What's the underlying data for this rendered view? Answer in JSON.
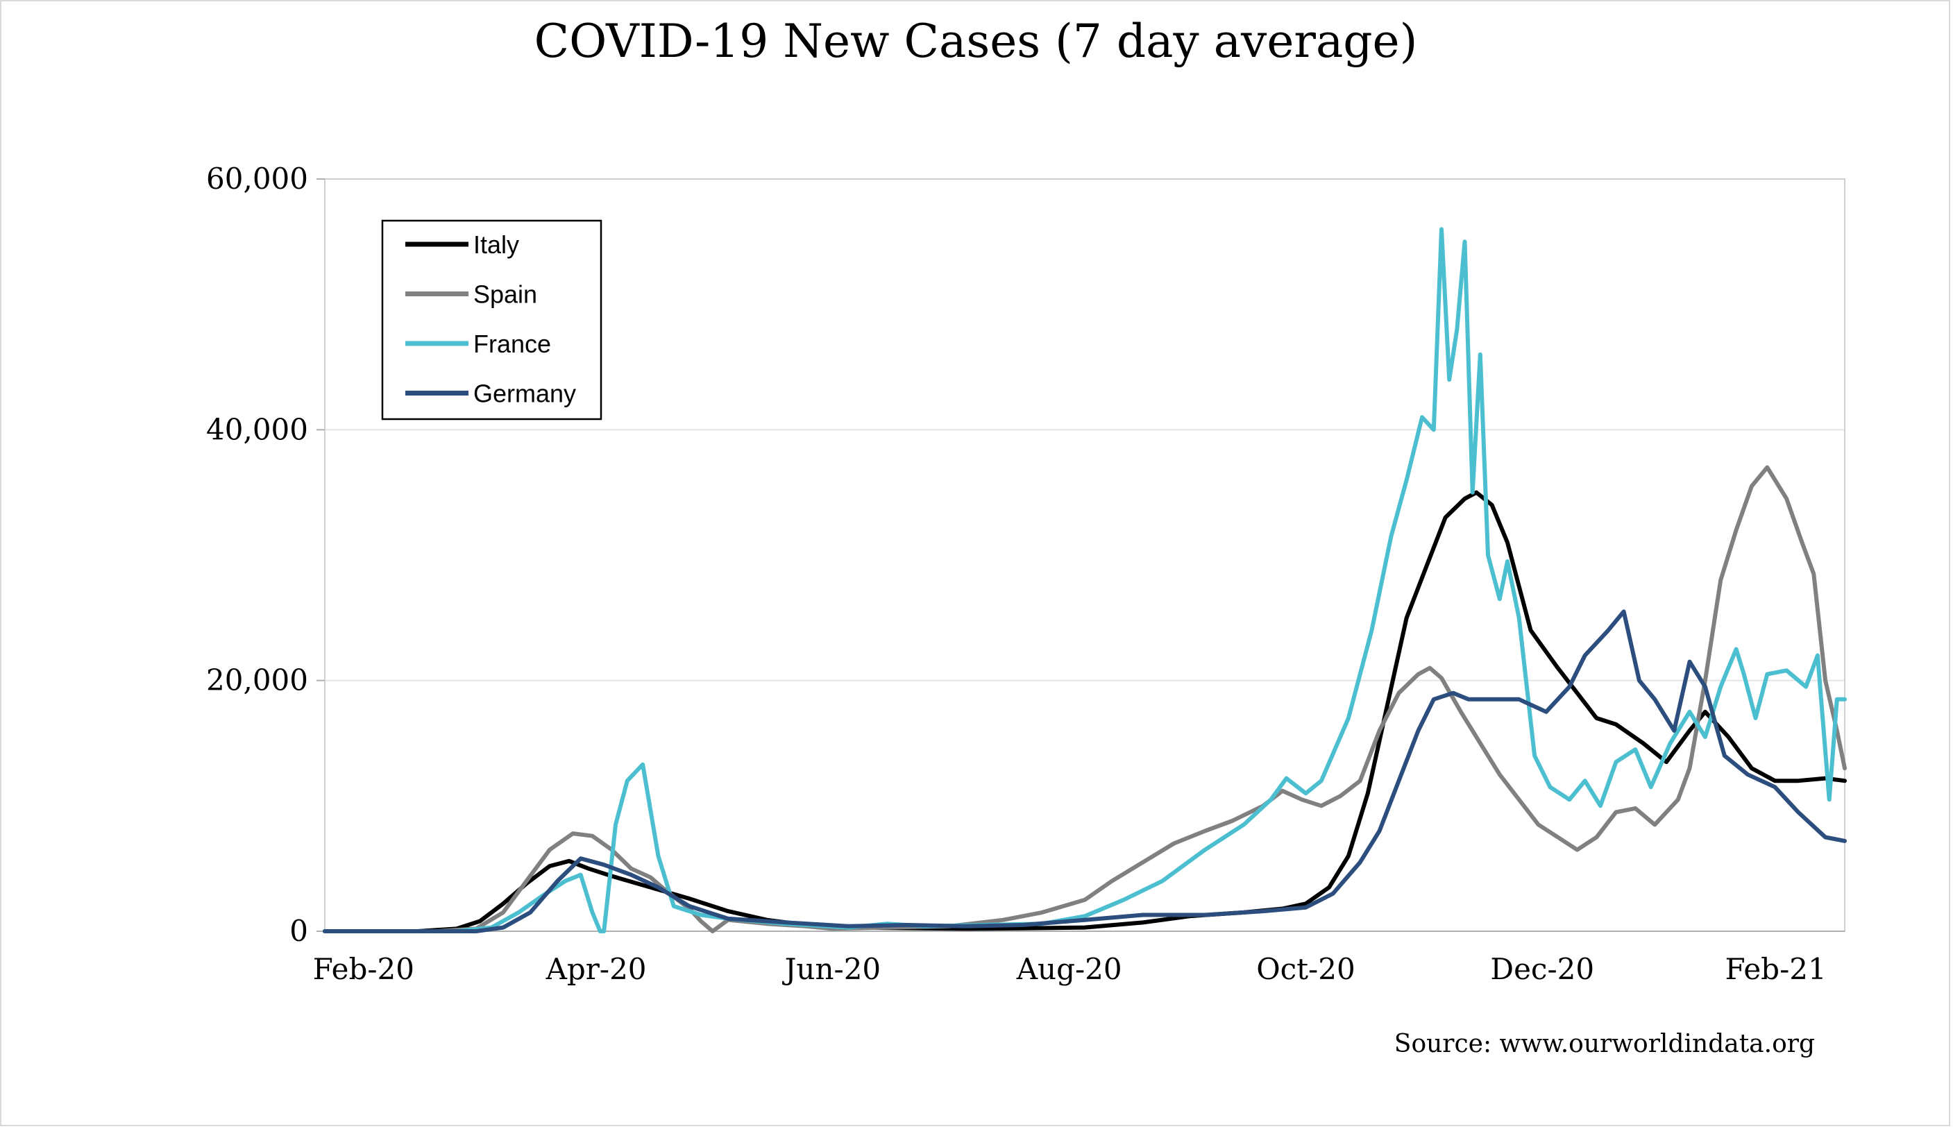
{
  "chart_data": {
    "type": "line",
    "title": "COVID-19 New Cases (7 day average)",
    "xlabel": "",
    "ylabel": "",
    "source": "Source: www.ourworldindata.org",
    "ylim": [
      0,
      60000
    ],
    "yticks": [
      0,
      20000,
      40000,
      60000
    ],
    "ytick_labels": [
      "0",
      "20,000",
      "40,000",
      "60,000"
    ],
    "xlim": [
      "2020-01-22",
      "2021-02-17"
    ],
    "xticks": [
      "2020-02-01",
      "2020-04-01",
      "2020-06-01",
      "2020-08-01",
      "2020-10-01",
      "2020-12-01",
      "2021-02-01"
    ],
    "xtick_labels": [
      "Feb-20",
      "Apr-20",
      "Jun-20",
      "Aug-20",
      "Oct-20",
      "Dec-20",
      "Feb-21"
    ],
    "grid": true,
    "legend": "top-left",
    "series": [
      {
        "name": "Italy",
        "color": "#000000",
        "points": [
          [
            "2020-01-22",
            0
          ],
          [
            "2020-02-15",
            0
          ],
          [
            "2020-02-25",
            200
          ],
          [
            "2020-03-02",
            800
          ],
          [
            "2020-03-08",
            2200
          ],
          [
            "2020-03-14",
            3800
          ],
          [
            "2020-03-20",
            5200
          ],
          [
            "2020-03-25",
            5600
          ],
          [
            "2020-03-30",
            5000
          ],
          [
            "2020-04-05",
            4400
          ],
          [
            "2020-04-15",
            3500
          ],
          [
            "2020-04-25",
            2600
          ],
          [
            "2020-05-05",
            1600
          ],
          [
            "2020-05-15",
            900
          ],
          [
            "2020-05-25",
            500
          ],
          [
            "2020-06-05",
            300
          ],
          [
            "2020-06-20",
            250
          ],
          [
            "2020-07-05",
            200
          ],
          [
            "2020-07-20",
            230
          ],
          [
            "2020-08-05",
            300
          ],
          [
            "2020-08-20",
            700
          ],
          [
            "2020-09-01",
            1200
          ],
          [
            "2020-09-15",
            1500
          ],
          [
            "2020-09-25",
            1800
          ],
          [
            "2020-10-01",
            2200
          ],
          [
            "2020-10-07",
            3500
          ],
          [
            "2020-10-12",
            6000
          ],
          [
            "2020-10-17",
            11000
          ],
          [
            "2020-10-22",
            18000
          ],
          [
            "2020-10-27",
            25000
          ],
          [
            "2020-11-01",
            29000
          ],
          [
            "2020-11-06",
            33000
          ],
          [
            "2020-11-11",
            34500
          ],
          [
            "2020-11-14",
            35000
          ],
          [
            "2020-11-18",
            34000
          ],
          [
            "2020-11-22",
            31000
          ],
          [
            "2020-11-28",
            24000
          ],
          [
            "2020-12-05",
            21000
          ],
          [
            "2020-12-10",
            19000
          ],
          [
            "2020-12-15",
            17000
          ],
          [
            "2020-12-20",
            16500
          ],
          [
            "2020-12-27",
            15000
          ],
          [
            "2021-01-02",
            13500
          ],
          [
            "2021-01-08",
            16000
          ],
          [
            "2021-01-12",
            17500
          ],
          [
            "2021-01-18",
            15500
          ],
          [
            "2021-01-24",
            13000
          ],
          [
            "2021-01-30",
            12000
          ],
          [
            "2021-02-05",
            12000
          ],
          [
            "2021-02-12",
            12200
          ],
          [
            "2021-02-17",
            12000
          ]
        ]
      },
      {
        "name": "Spain",
        "color": "#808080",
        "points": [
          [
            "2020-01-22",
            0
          ],
          [
            "2020-02-20",
            0
          ],
          [
            "2020-03-01",
            200
          ],
          [
            "2020-03-08",
            1500
          ],
          [
            "2020-03-14",
            4000
          ],
          [
            "2020-03-20",
            6500
          ],
          [
            "2020-03-26",
            7800
          ],
          [
            "2020-03-31",
            7600
          ],
          [
            "2020-04-05",
            6500
          ],
          [
            "2020-04-10",
            5000
          ],
          [
            "2020-04-15",
            4300
          ],
          [
            "2020-04-18",
            3500
          ],
          [
            "2020-04-22",
            2500
          ],
          [
            "2020-04-25",
            1800
          ],
          [
            "2020-04-28",
            800
          ],
          [
            "2020-05-01",
            0
          ],
          [
            "2020-05-05",
            900
          ],
          [
            "2020-05-15",
            600
          ],
          [
            "2020-05-25",
            400
          ],
          [
            "2020-06-01",
            200
          ],
          [
            "2020-06-15",
            300
          ],
          [
            "2020-07-01",
            400
          ],
          [
            "2020-07-15",
            900
          ],
          [
            "2020-07-25",
            1500
          ],
          [
            "2020-08-05",
            2500
          ],
          [
            "2020-08-12",
            4000
          ],
          [
            "2020-08-20",
            5500
          ],
          [
            "2020-08-28",
            7000
          ],
          [
            "2020-09-05",
            8000
          ],
          [
            "2020-09-12",
            8800
          ],
          [
            "2020-09-20",
            10000
          ],
          [
            "2020-09-25",
            11200
          ],
          [
            "2020-09-30",
            10500
          ],
          [
            "2020-10-05",
            10000
          ],
          [
            "2020-10-10",
            10800
          ],
          [
            "2020-10-15",
            12000
          ],
          [
            "2020-10-20",
            16000
          ],
          [
            "2020-10-25",
            19000
          ],
          [
            "2020-10-30",
            20500
          ],
          [
            "2020-11-02",
            21000
          ],
          [
            "2020-11-05",
            20200
          ],
          [
            "2020-11-10",
            17500
          ],
          [
            "2020-11-15",
            15000
          ],
          [
            "2020-11-20",
            12500
          ],
          [
            "2020-11-25",
            10500
          ],
          [
            "2020-11-30",
            8500
          ],
          [
            "2020-12-05",
            7500
          ],
          [
            "2020-12-10",
            6500
          ],
          [
            "2020-12-15",
            7500
          ],
          [
            "2020-12-20",
            9500
          ],
          [
            "2020-12-25",
            9800
          ],
          [
            "2020-12-30",
            8500
          ],
          [
            "2021-01-05",
            10500
          ],
          [
            "2021-01-08",
            13000
          ],
          [
            "2021-01-12",
            20000
          ],
          [
            "2021-01-16",
            28000
          ],
          [
            "2021-01-20",
            32000
          ],
          [
            "2021-01-24",
            35500
          ],
          [
            "2021-01-28",
            37000
          ],
          [
            "2021-02-02",
            34500
          ],
          [
            "2021-02-06",
            31000
          ],
          [
            "2021-02-09",
            28500
          ],
          [
            "2021-02-12",
            20000
          ],
          [
            "2021-02-15",
            16000
          ],
          [
            "2021-02-17",
            13000
          ]
        ]
      },
      {
        "name": "France",
        "color": "#4bbfd0",
        "points": [
          [
            "2020-01-22",
            0
          ],
          [
            "2020-02-25",
            0
          ],
          [
            "2020-03-05",
            300
          ],
          [
            "2020-03-12",
            1500
          ],
          [
            "2020-03-18",
            2800
          ],
          [
            "2020-03-24",
            4000
          ],
          [
            "2020-03-28",
            4500
          ],
          [
            "2020-03-31",
            1500
          ],
          [
            "2020-04-02",
            0
          ],
          [
            "2020-04-03",
            -300
          ],
          [
            "2020-04-06",
            8500
          ],
          [
            "2020-04-09",
            12000
          ],
          [
            "2020-04-13",
            13300
          ],
          [
            "2020-04-17",
            6000
          ],
          [
            "2020-04-21",
            2000
          ],
          [
            "2020-04-28",
            1300
          ],
          [
            "2020-05-05",
            1000
          ],
          [
            "2020-05-20",
            600
          ],
          [
            "2020-06-05",
            300
          ],
          [
            "2020-06-15",
            600
          ],
          [
            "2020-06-25",
            400
          ],
          [
            "2020-07-10",
            500
          ],
          [
            "2020-07-25",
            600
          ],
          [
            "2020-08-05",
            1200
          ],
          [
            "2020-08-15",
            2500
          ],
          [
            "2020-08-25",
            4000
          ],
          [
            "2020-09-05",
            6500
          ],
          [
            "2020-09-15",
            8500
          ],
          [
            "2020-09-22",
            10500
          ],
          [
            "2020-09-26",
            12200
          ],
          [
            "2020-10-01",
            11000
          ],
          [
            "2020-10-05",
            12000
          ],
          [
            "2020-10-12",
            17000
          ],
          [
            "2020-10-18",
            24000
          ],
          [
            "2020-10-23",
            31500
          ],
          [
            "2020-10-27",
            36000
          ],
          [
            "2020-10-31",
            41000
          ],
          [
            "2020-11-03",
            40000
          ],
          [
            "2020-11-05",
            56000
          ],
          [
            "2020-11-07",
            44000
          ],
          [
            "2020-11-09",
            48000
          ],
          [
            "2020-11-11",
            55000
          ],
          [
            "2020-11-13",
            35000
          ],
          [
            "2020-11-15",
            46000
          ],
          [
            "2020-11-17",
            30000
          ],
          [
            "2020-11-20",
            26500
          ],
          [
            "2020-11-22",
            29500
          ],
          [
            "2020-11-25",
            25000
          ],
          [
            "2020-11-29",
            14000
          ],
          [
            "2020-12-03",
            11500
          ],
          [
            "2020-12-08",
            10500
          ],
          [
            "2020-12-12",
            12000
          ],
          [
            "2020-12-16",
            10000
          ],
          [
            "2020-12-20",
            13500
          ],
          [
            "2020-12-25",
            14500
          ],
          [
            "2020-12-29",
            11500
          ],
          [
            "2021-01-03",
            15000
          ],
          [
            "2021-01-08",
            17500
          ],
          [
            "2021-01-12",
            15500
          ],
          [
            "2021-01-16",
            19500
          ],
          [
            "2021-01-20",
            22500
          ],
          [
            "2021-01-22",
            20500
          ],
          [
            "2021-01-25",
            17000
          ],
          [
            "2021-01-28",
            20500
          ],
          [
            "2021-02-02",
            20800
          ],
          [
            "2021-02-07",
            19500
          ],
          [
            "2021-02-10",
            22000
          ],
          [
            "2021-02-13",
            10500
          ],
          [
            "2021-02-15",
            18500
          ],
          [
            "2021-02-17",
            18500
          ]
        ]
      },
      {
        "name": "Germany",
        "color": "#2c4e7e",
        "points": [
          [
            "2020-01-22",
            0
          ],
          [
            "2020-03-01",
            0
          ],
          [
            "2020-03-08",
            300
          ],
          [
            "2020-03-15",
            1500
          ],
          [
            "2020-03-22",
            4000
          ],
          [
            "2020-03-28",
            5800
          ],
          [
            "2020-04-03",
            5300
          ],
          [
            "2020-04-10",
            4500
          ],
          [
            "2020-04-17",
            3500
          ],
          [
            "2020-04-25",
            2000
          ],
          [
            "2020-05-05",
            1000
          ],
          [
            "2020-05-20",
            700
          ],
          [
            "2020-06-05",
            400
          ],
          [
            "2020-06-20",
            500
          ],
          [
            "2020-07-05",
            400
          ],
          [
            "2020-07-20",
            500
          ],
          [
            "2020-08-05",
            900
          ],
          [
            "2020-08-20",
            1300
          ],
          [
            "2020-09-05",
            1300
          ],
          [
            "2020-09-20",
            1600
          ],
          [
            "2020-10-01",
            1900
          ],
          [
            "2020-10-08",
            3000
          ],
          [
            "2020-10-15",
            5500
          ],
          [
            "2020-10-20",
            8000
          ],
          [
            "2020-10-25",
            12000
          ],
          [
            "2020-10-30",
            16000
          ],
          [
            "2020-11-03",
            18500
          ],
          [
            "2020-11-08",
            19000
          ],
          [
            "2020-11-12",
            18500
          ],
          [
            "2020-11-18",
            18500
          ],
          [
            "2020-11-25",
            18500
          ],
          [
            "2020-12-02",
            17500
          ],
          [
            "2020-12-08",
            19500
          ],
          [
            "2020-12-12",
            22000
          ],
          [
            "2020-12-18",
            24000
          ],
          [
            "2020-12-22",
            25500
          ],
          [
            "2020-12-26",
            20000
          ],
          [
            "2020-12-30",
            18500
          ],
          [
            "2021-01-04",
            16000
          ],
          [
            "2021-01-08",
            21500
          ],
          [
            "2021-01-12",
            19500
          ],
          [
            "2021-01-17",
            14000
          ],
          [
            "2021-01-23",
            12500
          ],
          [
            "2021-01-30",
            11500
          ],
          [
            "2021-02-05",
            9500
          ],
          [
            "2021-02-12",
            7500
          ],
          [
            "2021-02-17",
            7200
          ]
        ]
      }
    ]
  }
}
